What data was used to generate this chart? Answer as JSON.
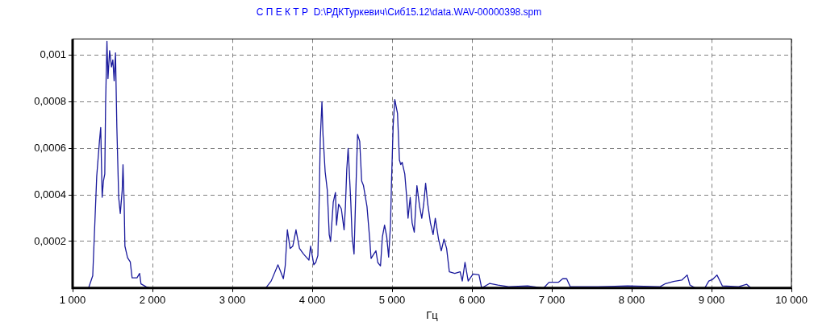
{
  "chart_data": {
    "type": "line",
    "title": "С П Е К Т Р  D:\\РДКТуркевич\\Сиб15.12\\data.WAV-00000398.spm",
    "xlabel": "Гц",
    "x": [
      1200,
      1252,
      1302,
      1336,
      1352,
      1370,
      1386,
      1403,
      1413,
      1430,
      1443,
      1463,
      1487,
      1504,
      1520,
      1537,
      1554,
      1577,
      1597,
      1621,
      1631,
      1645,
      1655,
      1688,
      1722,
      1745,
      1806,
      1839,
      1856,
      1923,
      1973,
      3418,
      3486,
      3571,
      3605,
      3639,
      3662,
      3689,
      3723,
      3757,
      3797,
      3841,
      3892,
      3959,
      3980,
      4020,
      4044,
      4071,
      4084,
      4101,
      4122,
      4135,
      4162,
      4189,
      4213,
      4230,
      4264,
      4291,
      4304,
      4331,
      4365,
      4399,
      4416,
      4433,
      4450,
      4483,
      4500,
      4524,
      4544,
      4568,
      4595,
      4619,
      4642,
      4686,
      4720,
      4737,
      4771,
      4798,
      4821,
      4855,
      4879,
      4906,
      4933,
      4957,
      4980,
      4994,
      5014,
      5034,
      5051,
      5068,
      5092,
      5109,
      5126,
      5159,
      5183,
      5200,
      5227,
      5251,
      5278,
      5311,
      5345,
      5372,
      5396,
      5420,
      5447,
      5480,
      5514,
      5541,
      5582,
      5616,
      5650,
      5683,
      5717,
      5785,
      5852,
      5879,
      5913,
      5953,
      6014,
      6088,
      6122,
      6223,
      6325,
      6460,
      6697,
      6898,
      6966,
      7085,
      7136,
      7186,
      7230,
      7576,
      7949,
      8356,
      8424,
      8525,
      8627,
      8695,
      8729,
      8797,
      8915,
      8966,
      9017,
      9068,
      9136,
      9339,
      9441,
      9492
    ],
    "values": [
      0,
      5.3e-05,
      0.00048,
      0.00063,
      0.00069,
      0.00039,
      0.00046,
      0.00049,
      0.00079,
      0.00106,
      0.0009,
      0.00102,
      0.00095,
      0.00098,
      0.00089,
      0.00101,
      0.00069,
      0.00039,
      0.00032,
      0.00042,
      0.00053,
      0.00037,
      0.00018,
      0.00013,
      0.000112,
      4.4e-05,
      4.4e-05,
      6.3e-05,
      1.8e-05,
      5e-06,
      0,
      0,
      3e-05,
      0.0001,
      7e-05,
      4e-05,
      9.5e-05,
      0.00025,
      0.00017,
      0.00018,
      0.00025,
      0.00017,
      0.000146,
      0.00012,
      0.00018,
      0.0001,
      0.00011,
      0.00014,
      0.00032,
      0.00064,
      0.0008,
      0.00066,
      0.0005,
      0.00042,
      0.00023,
      0.0002,
      0.00037,
      0.00041,
      0.00027,
      0.00036,
      0.00034,
      0.00025,
      0.00035,
      0.00051,
      0.0006,
      0.00037,
      0.00022,
      0.000146,
      0.00039,
      0.00066,
      0.00063,
      0.00046,
      0.00044,
      0.00035,
      0.00021,
      0.000127,
      0.000146,
      0.00016,
      0.00011,
      9.5e-05,
      0.00022,
      0.00027,
      0.00022,
      0.000133,
      0.00027,
      0.00047,
      0.0007,
      0.00081,
      0.00078,
      0.00075,
      0.00055,
      0.00053,
      0.00054,
      0.00049,
      0.00039,
      0.0003,
      0.00039,
      0.00028,
      0.00024,
      0.00044,
      0.00035,
      0.0003,
      0.00036,
      0.00045,
      0.00036,
      0.00028,
      0.00023,
      0.0003,
      0.00021,
      0.00016,
      0.00021,
      0.00017,
      7e-05,
      6.3e-05,
      7e-05,
      3e-05,
      0.00011,
      3e-05,
      6e-05,
      5.7e-05,
      0,
      2e-05,
      1.3e-05,
      6e-06,
      9e-06,
      0,
      2.5e-05,
      2.5e-05,
      4e-05,
      4e-05,
      6e-06,
      6e-06,
      9e-06,
      6e-06,
      1.9e-05,
      2.8e-05,
      3.4e-05,
      5.6e-05,
      1.3e-05,
      0,
      0,
      3e-05,
      3.8e-05,
      5.6e-05,
      9e-06,
      6e-06,
      1.6e-05,
      0
    ],
    "color": "#1a1a9c",
    "xlim": [
      1000,
      10000
    ],
    "ylim": [
      0,
      0.00107
    ],
    "xticks": [
      {
        "value": 1000,
        "label": "1 000"
      },
      {
        "value": 2000,
        "label": "2 000"
      },
      {
        "value": 3000,
        "label": "3 000"
      },
      {
        "value": 4000,
        "label": "4 000"
      },
      {
        "value": 5000,
        "label": "5 000"
      },
      {
        "value": 6000,
        "label": "6 000"
      },
      {
        "value": 7000,
        "label": "7 000"
      },
      {
        "value": 8000,
        "label": "8 000"
      },
      {
        "value": 9000,
        "label": "9 000"
      },
      {
        "value": 10000,
        "label": "10 000"
      }
    ],
    "yticks": [
      {
        "value": 0.0002,
        "label": "0,0002"
      },
      {
        "value": 0.0004,
        "label": "0,0004"
      },
      {
        "value": 0.0006,
        "label": "0,0006"
      },
      {
        "value": 0.0008,
        "label": "0,0008"
      },
      {
        "value": 0.001,
        "label": "0,001"
      }
    ],
    "grid": true,
    "legend": false,
    "marker": "none",
    "line_style": "solid"
  }
}
